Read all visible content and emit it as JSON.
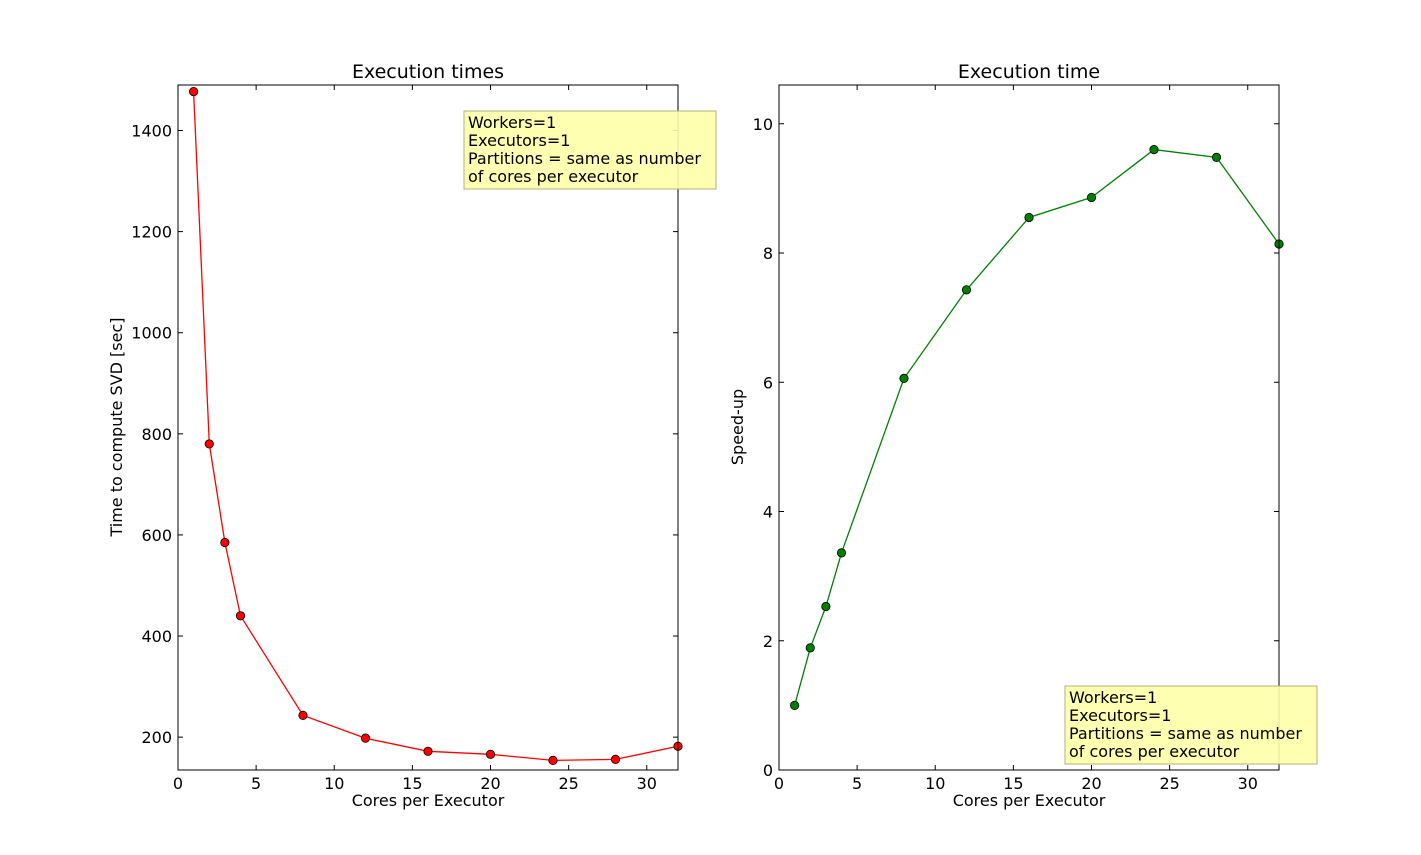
{
  "chart_data": [
    {
      "type": "line",
      "title": "Execution times",
      "xlabel": "Cores per Executor",
      "ylabel": "Time to compute SVD [sec]",
      "xlim": [
        0,
        32
      ],
      "ylim": [
        135,
        1490
      ],
      "xticks": [
        0,
        5,
        10,
        15,
        20,
        25,
        30
      ],
      "yticks": [
        200,
        400,
        600,
        800,
        1000,
        1200,
        1400
      ],
      "grid": false,
      "series": [
        {
          "color": "#ff0000",
          "marker": "circle",
          "x": [
            1,
            2,
            3,
            4,
            8,
            12,
            16,
            20,
            24,
            28,
            32
          ],
          "y": [
            1477,
            780,
            585,
            440,
            243,
            198,
            172,
            166,
            154,
            156,
            182
          ]
        }
      ],
      "annotation": {
        "placement": "top-right",
        "lines": [
          "Workers=1",
          "Executors=1",
          "Partitions = same as number",
          "of cores per executor"
        ]
      }
    },
    {
      "type": "line",
      "title": "Execution time",
      "xlabel": "Cores per Executor",
      "ylabel": "Speed-up",
      "xlim": [
        0,
        32
      ],
      "ylim": [
        0,
        10.6
      ],
      "xticks": [
        0,
        5,
        10,
        15,
        20,
        25,
        30
      ],
      "yticks": [
        0,
        2,
        4,
        6,
        8,
        10
      ],
      "grid": false,
      "series": [
        {
          "color": "#008000",
          "marker": "circle",
          "x": [
            1,
            2,
            3,
            4,
            8,
            12,
            16,
            20,
            24,
            28,
            32
          ],
          "y": [
            1.0,
            1.89,
            2.53,
            3.36,
            6.06,
            7.43,
            8.55,
            8.86,
            9.6,
            9.48,
            8.14
          ]
        }
      ],
      "annotation": {
        "placement": "bottom-right",
        "lines": [
          "Workers=1",
          "Executors=1",
          "Partitions = same as number",
          "of cores per executor"
        ]
      }
    }
  ],
  "colors": {
    "annotation_fill": "#ffffaa",
    "annotation_border": "#b0b080",
    "marker_edge": "#000000"
  }
}
